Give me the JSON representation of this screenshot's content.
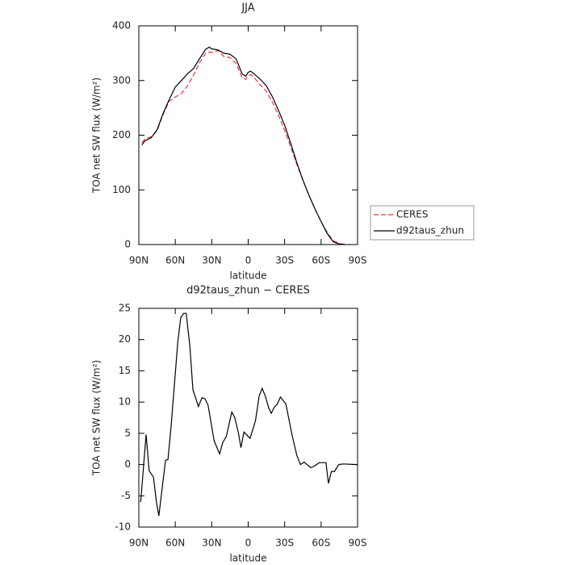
{
  "chart_data": [
    {
      "type": "line",
      "title": "JJA",
      "xlabel": "latitude",
      "ylabel": "TOA net SW flux (W/m²)",
      "x": [
        87.5,
        85,
        80,
        75,
        70,
        65,
        60,
        55,
        50,
        45,
        40,
        35,
        32,
        30,
        25,
        20,
        15,
        10,
        5,
        2,
        0,
        -2,
        -5,
        -10,
        -15,
        -20,
        -25,
        -30,
        -35,
        -40,
        -45,
        -50,
        -55,
        -60,
        -65,
        -70,
        -75,
        -80
      ],
      "series": [
        {
          "name": "CERES",
          "color": "#e8383d",
          "linestyle": "dashed",
          "values": [
            186,
            193,
            197,
            208,
            238,
            262,
            270,
            276,
            290,
            310,
            333,
            350,
            352,
            351,
            355,
            344,
            342,
            331,
            305,
            302,
            309,
            311,
            305,
            292,
            280,
            260,
            236,
            209,
            178,
            147,
            117,
            90,
            65,
            42,
            22,
            7,
            2,
            0
          ]
        },
        {
          "name": "d92taus_zhun",
          "color": "#000000",
          "linestyle": "solid",
          "values": [
            182,
            190,
            195,
            210,
            240,
            265,
            288,
            300,
            312,
            322,
            340,
            357,
            361,
            358,
            356,
            350,
            348,
            340,
            312,
            308,
            315,
            317,
            312,
            302,
            290,
            270,
            245,
            218,
            185,
            150,
            118,
            90,
            65,
            42,
            20,
            5,
            1,
            0
          ]
        }
      ],
      "xlim": [
        90,
        -90
      ],
      "xticks": [
        {
          "value": 90,
          "label": "90N"
        },
        {
          "value": 60,
          "label": "60N"
        },
        {
          "value": 30,
          "label": "30N"
        },
        0,
        {
          "value": -30,
          "label": "30S"
        },
        {
          "value": -60,
          "label": "60S"
        },
        {
          "value": -90,
          "label": "90S"
        }
      ],
      "ylim": [
        0,
        400
      ],
      "yticks": [
        0,
        100,
        200,
        300,
        400
      ],
      "legend": "outside right"
    },
    {
      "type": "line",
      "title": "d92taus_zhun − CERES",
      "xlabel": "latitude",
      "ylabel": "TOA net SW flux (W/m²)",
      "x": [
        88.5,
        84,
        81.5,
        78,
        75.5,
        73.5,
        68,
        66,
        63.5,
        58,
        55.5,
        53,
        51,
        48,
        45.5,
        41,
        38,
        35.5,
        33,
        28,
        23.5,
        21,
        18,
        13.5,
        11,
        8,
        6,
        3.5,
        -1.5,
        -6,
        -9,
        -11.5,
        -14,
        -17,
        -19,
        -21.5,
        -24,
        -26.5,
        -31,
        -36,
        -40,
        -43,
        -46,
        -51.5,
        -54,
        -58.5,
        -64,
        -66,
        -68.5,
        -71,
        -74.5,
        -78,
        -90
      ],
      "series": [
        {
          "name": "d92taus_zhun − CERES",
          "color": "#000000",
          "linestyle": "solid",
          "values": [
            -6,
            4.8,
            -1,
            -2,
            -6,
            -8.2,
            0.7,
            0.8,
            6,
            19.5,
            23.5,
            24.2,
            24.2,
            19,
            12,
            9.3,
            10.7,
            10.5,
            9.5,
            3.8,
            1.7,
            3.5,
            4.5,
            8.4,
            7.5,
            5,
            2.7,
            5.2,
            4.2,
            7,
            11,
            12.2,
            11,
            9,
            8.2,
            9.2,
            9.7,
            10.8,
            9.7,
            4.8,
            1.5,
            0,
            0.4,
            -0.5,
            -0.3,
            0.3,
            0.3,
            -3,
            -1.1,
            -1.1,
            0,
            0.1,
            0
          ]
        }
      ],
      "xlim": [
        90,
        -90
      ],
      "xticks": [
        {
          "value": 90,
          "label": "90N"
        },
        {
          "value": 60,
          "label": "60N"
        },
        {
          "value": 30,
          "label": "30N"
        },
        0,
        {
          "value": -30,
          "label": "30S"
        },
        {
          "value": -60,
          "label": "60S"
        },
        {
          "value": -90,
          "label": "90S"
        }
      ],
      "ylim": [
        -10,
        25
      ],
      "yticks": [
        -10,
        -5,
        0,
        5,
        10,
        15,
        20,
        25
      ]
    }
  ]
}
